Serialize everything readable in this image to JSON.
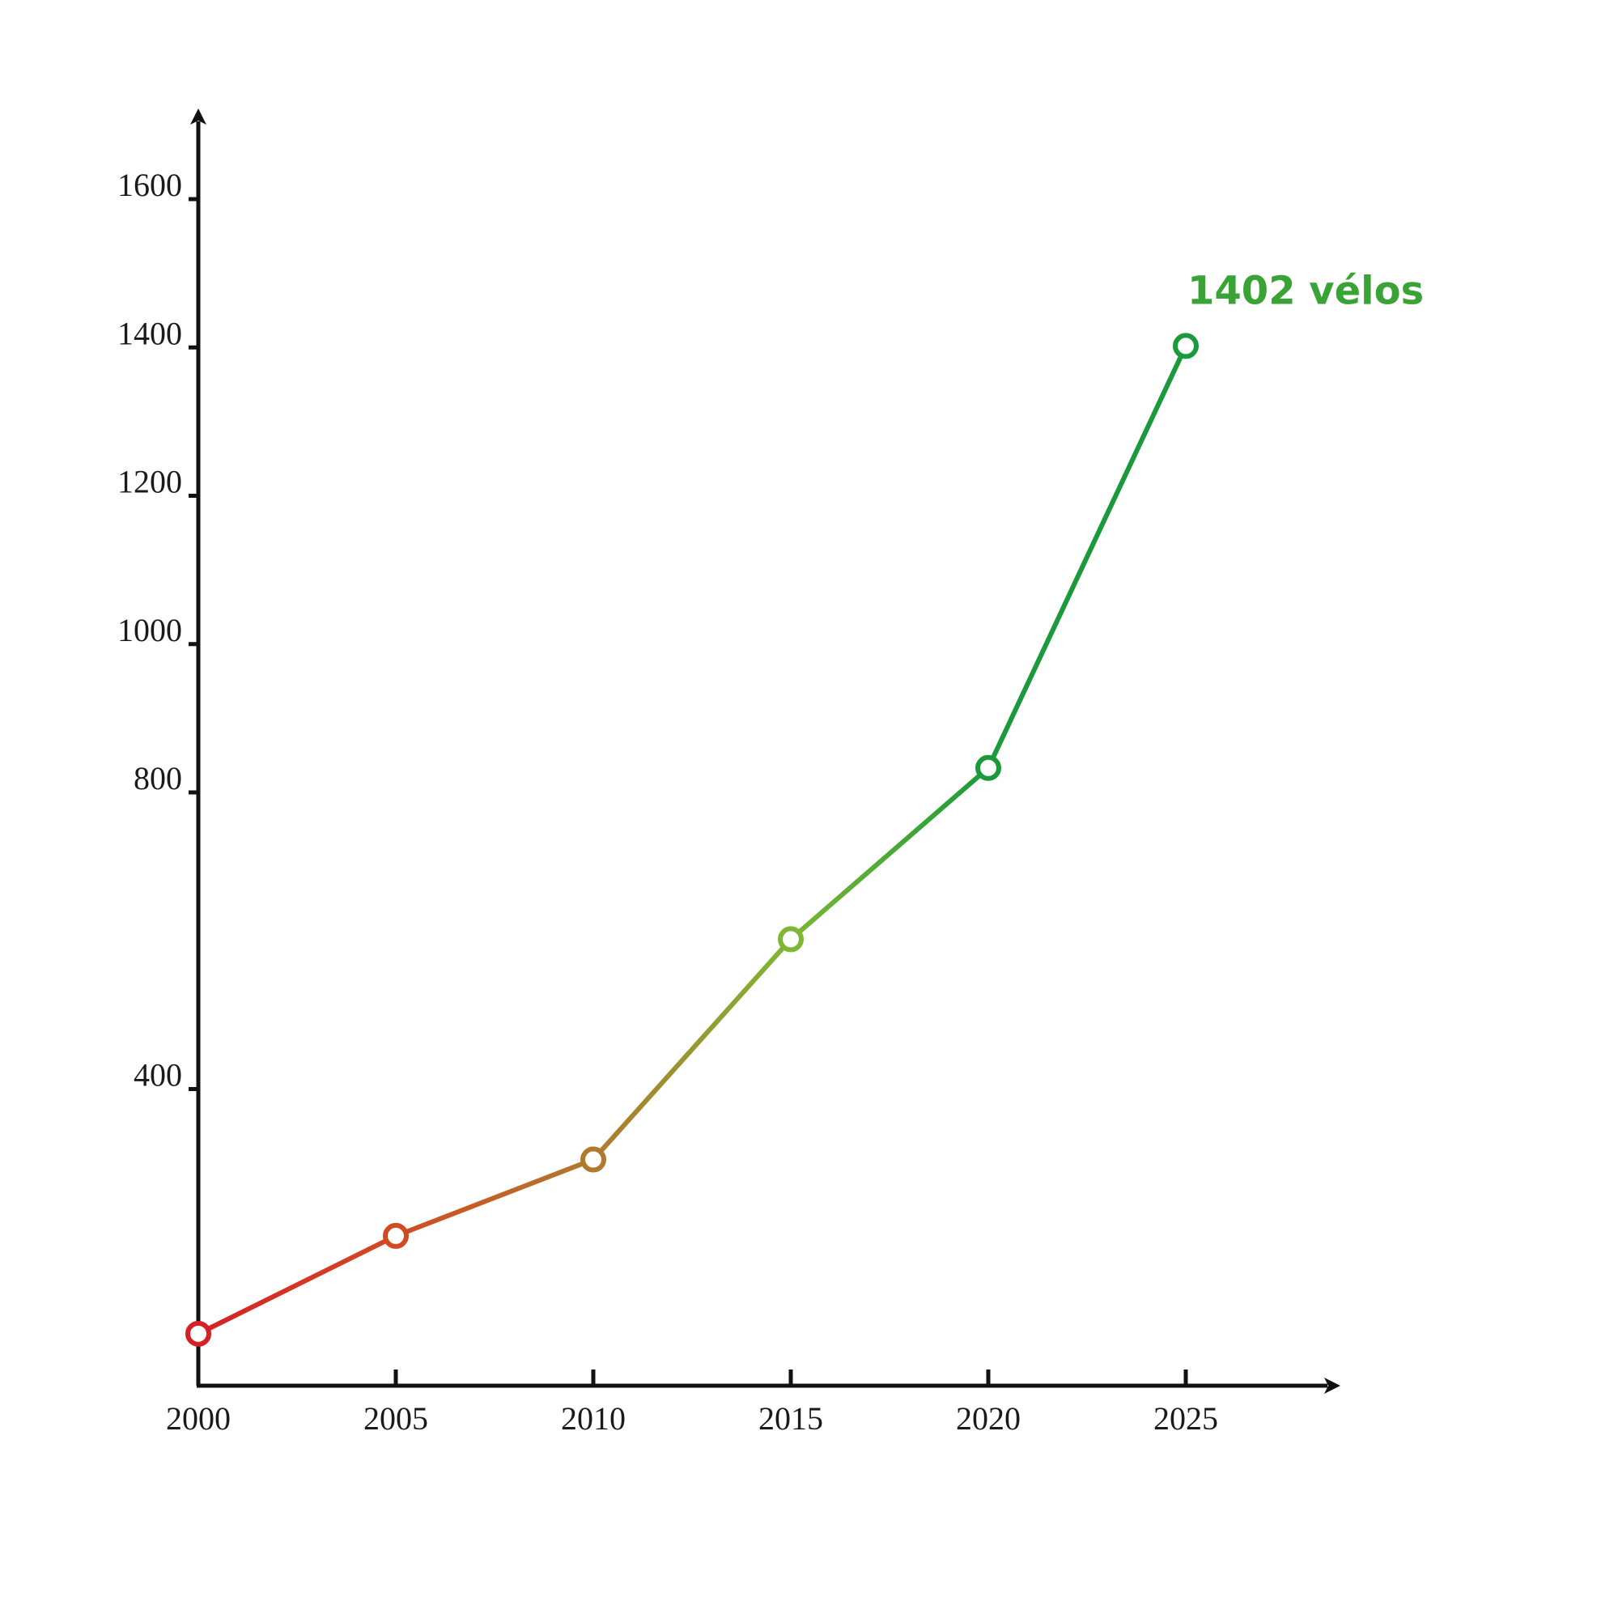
{
  "chart_data": {
    "type": "line",
    "title": "",
    "xlabel": "",
    "ylabel": "",
    "x": [
      2000,
      2005,
      2010,
      2015,
      2020,
      2025
    ],
    "series": [
      {
        "values": [
          70,
          202,
          305,
          602,
          833,
          1402
        ],
        "colors": [
          "#d42128",
          "#d24a22",
          "#b07a2e",
          "#7db733",
          "#1a9a3a",
          "#1a9a3a"
        ]
      }
    ],
    "x_ticks": [
      "2000",
      "2005",
      "2010",
      "2015",
      "2020",
      "2025"
    ],
    "y_ticks": [
      "400",
      "800",
      "1000",
      "1200",
      "1400",
      "1600"
    ],
    "y_tick_values": [
      400,
      800,
      1000,
      1200,
      1400,
      1600
    ],
    "xlim": [
      2000,
      2025
    ],
    "ylim": [
      0,
      1600
    ],
    "grid": false,
    "annotations": [
      {
        "text": "1402 vélos",
        "x": 2025,
        "y": 1402,
        "color": "#3aa335"
      }
    ]
  }
}
